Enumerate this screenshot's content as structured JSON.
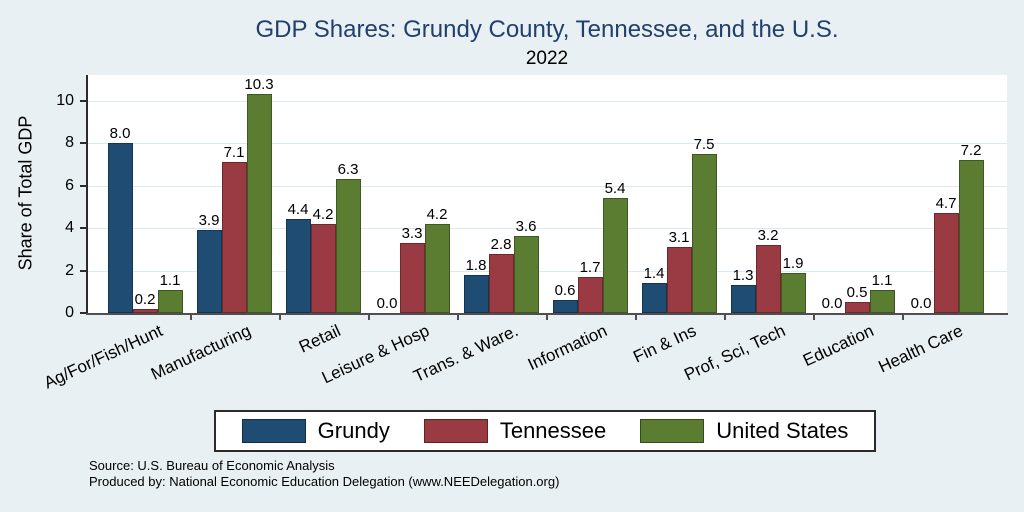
{
  "colors": {
    "background": "#e9f0f3",
    "plot_background": "#ffffff",
    "title_text": "#22406b",
    "gridline": "#dde9f1",
    "axis_line": "#4f4f4f",
    "grundy_blue": "#1e4c73",
    "tennessee_maroon": "#9a3b43",
    "united_states_green": "#5b7d31"
  },
  "footer": {
    "source": "Source: U.S. Bureau of Economic Analysis",
    "produced_by": "Produced by: National Economic Education Delegation (www.NEEDelegation.org)"
  },
  "chart_data": {
    "type": "bar",
    "title": "GDP Shares: Grundy County, Tennessee, and the U.S.",
    "subtitle": "2022",
    "xlabel": "",
    "ylabel": "Share of Total GDP",
    "ylim": [
      0,
      11.2
    ],
    "yticks": [
      0,
      2,
      4,
      6,
      8,
      10
    ],
    "grid": true,
    "value_labels": true,
    "legend_position": "bottom",
    "categories": [
      "Ag/For/Fish/Hunt",
      "Manufacturing",
      "Retail",
      "Leisure & Hosp",
      "Trans. & Ware.",
      "Information",
      "Fin & Ins",
      "Prof, Sci, Tech",
      "Education",
      "Health Care"
    ],
    "series": [
      {
        "name": "Grundy",
        "color": "#1e4c73",
        "values": [
          8.0,
          3.9,
          4.4,
          0.0,
          1.8,
          0.6,
          1.4,
          1.3,
          0.0,
          0.0
        ]
      },
      {
        "name": "Tennessee",
        "color": "#9a3b43",
        "values": [
          0.2,
          7.1,
          4.2,
          3.3,
          2.8,
          1.7,
          3.1,
          3.2,
          0.5,
          4.7
        ]
      },
      {
        "name": "United States",
        "color": "#5b7d31",
        "values": [
          1.1,
          10.3,
          6.3,
          4.2,
          3.6,
          5.4,
          7.5,
          1.9,
          1.1,
          7.2
        ]
      }
    ]
  }
}
